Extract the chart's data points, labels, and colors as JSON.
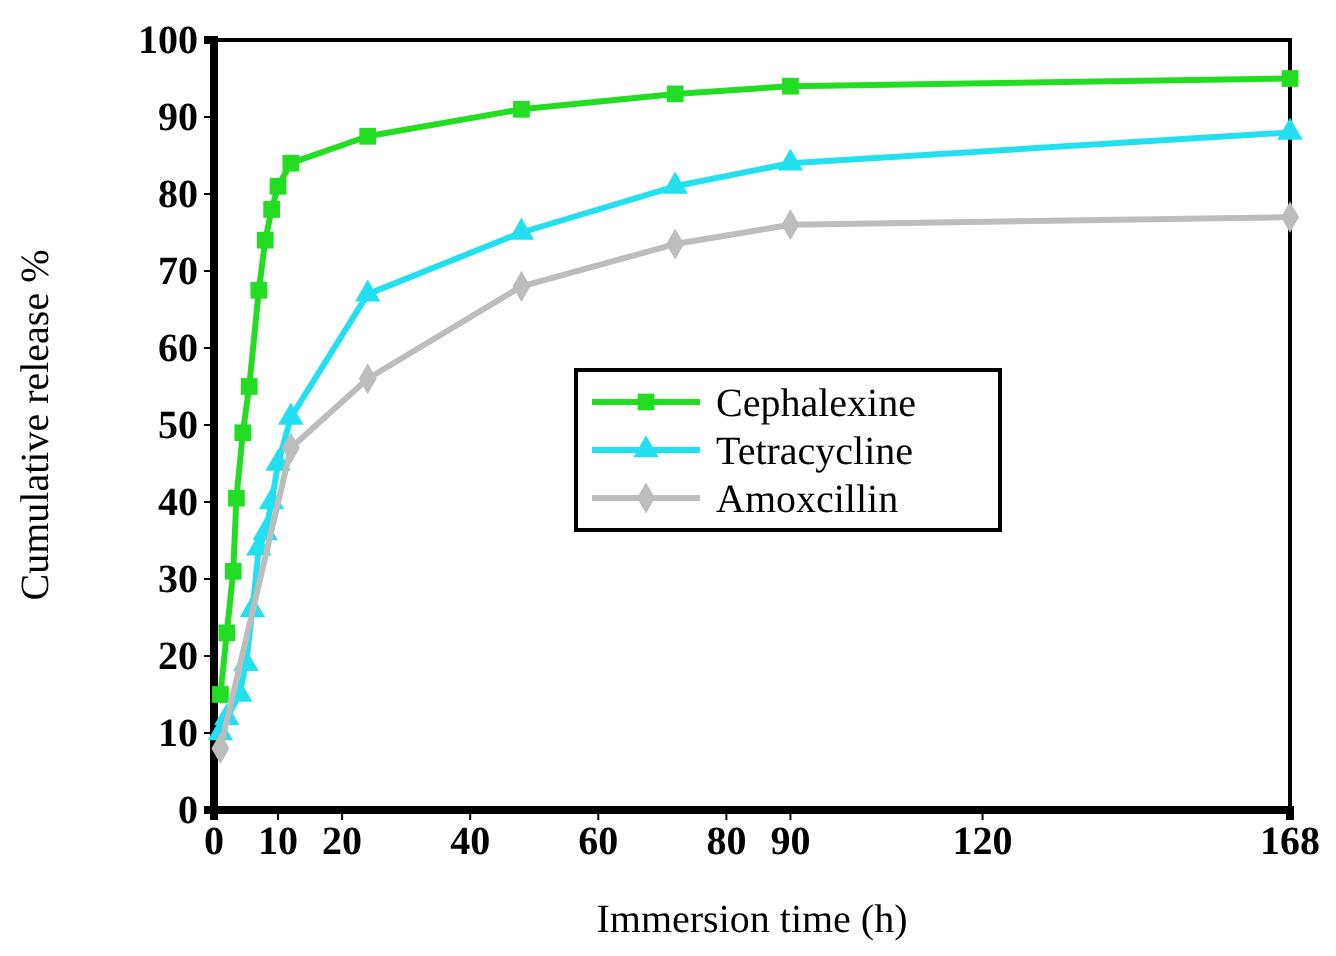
{
  "chart_data": {
    "type": "line",
    "xlabel": "Immersion time (h)",
    "ylabel": "Cumulative release %",
    "xlim": [
      0,
      168
    ],
    "xticks": [
      0,
      10,
      20,
      40,
      60,
      80,
      90,
      120,
      168
    ],
    "ylim": [
      0,
      100
    ],
    "yticks": [
      0,
      10,
      20,
      30,
      40,
      50,
      60,
      70,
      80,
      90,
      100
    ],
    "legend": "center",
    "grid": false,
    "line_style": "solid",
    "series": [
      {
        "name": "Cephalexine",
        "color": "#22dd22",
        "marker": "square",
        "x": [
          1,
          2,
          3,
          3.5,
          4.5,
          5.5,
          7,
          8,
          9,
          10,
          12,
          24,
          48,
          72,
          90,
          168
        ],
        "values": [
          15,
          23,
          31,
          40.5,
          49,
          55,
          67.5,
          74,
          78,
          81,
          84,
          87.5,
          91,
          93,
          94,
          95
        ]
      },
      {
        "name": "Tetracycline",
        "color": "#22e0f0",
        "marker": "triangle",
        "x": [
          1,
          2,
          4,
          5,
          6,
          7,
          8,
          9,
          10,
          12,
          24,
          48,
          72,
          90,
          168
        ],
        "values": [
          10,
          12,
          15,
          19,
          26,
          34,
          36,
          40,
          45,
          51,
          67,
          75,
          81,
          84,
          88
        ]
      },
      {
        "name": "Amoxcillin",
        "color": "#bdbdbd",
        "marker": "diamond",
        "x": [
          1,
          12,
          24,
          48,
          72,
          90,
          168
        ],
        "values": [
          8,
          47,
          56,
          68,
          73.5,
          76,
          77
        ]
      }
    ]
  }
}
